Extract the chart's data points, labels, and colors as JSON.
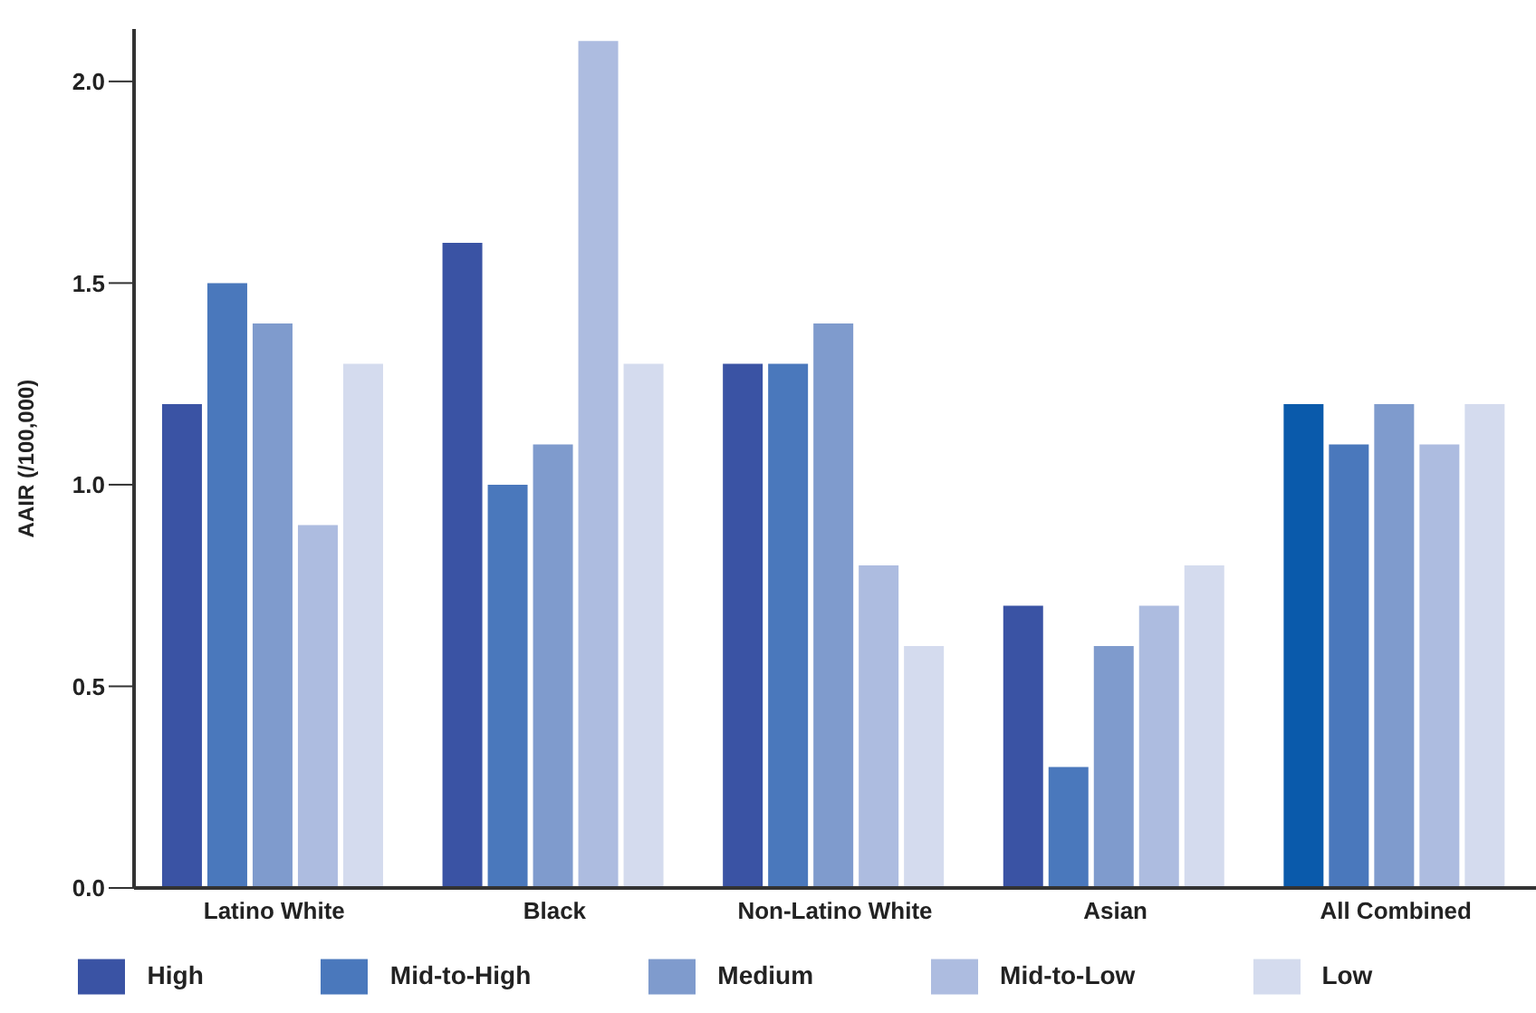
{
  "chart_data": {
    "type": "bar",
    "ylabel": "AAIR (/100,000)",
    "categories": [
      "Latino White",
      "Black",
      "Non-Latino White",
      "Asian",
      "All Combined"
    ],
    "series": [
      {
        "name": "High",
        "color": "#3a53a4",
        "colors": [
          "#3a53a4",
          "#3a53a4",
          "#3a53a4",
          "#3a53a4",
          "#0a5aab"
        ],
        "values": [
          1.2,
          1.6,
          1.3,
          0.7,
          1.2
        ]
      },
      {
        "name": "Mid-to-High",
        "color": "#4a78bc",
        "values": [
          1.5,
          1.0,
          1.3,
          0.3,
          1.1
        ]
      },
      {
        "name": "Medium",
        "color": "#7f9bcd",
        "values": [
          1.4,
          1.1,
          1.4,
          0.6,
          1.2
        ]
      },
      {
        "name": "Mid-to-Low",
        "color": "#adbce0",
        "values": [
          0.9,
          2.1,
          0.8,
          0.7,
          1.1
        ]
      },
      {
        "name": "Low",
        "color": "#d4dbee",
        "values": [
          1.3,
          1.3,
          0.6,
          0.8,
          1.2
        ]
      }
    ],
    "ylim": [
      0,
      2.13
    ],
    "yticks": [
      {
        "value": 0,
        "label": "0.0"
      },
      {
        "value": 0.5,
        "label": "0.5"
      },
      {
        "value": 1,
        "label": "1.0"
      },
      {
        "value": 1.5,
        "label": "1.5"
      },
      {
        "value": 2,
        "label": "2.0"
      }
    ],
    "grid": false,
    "legend": "bottom"
  }
}
